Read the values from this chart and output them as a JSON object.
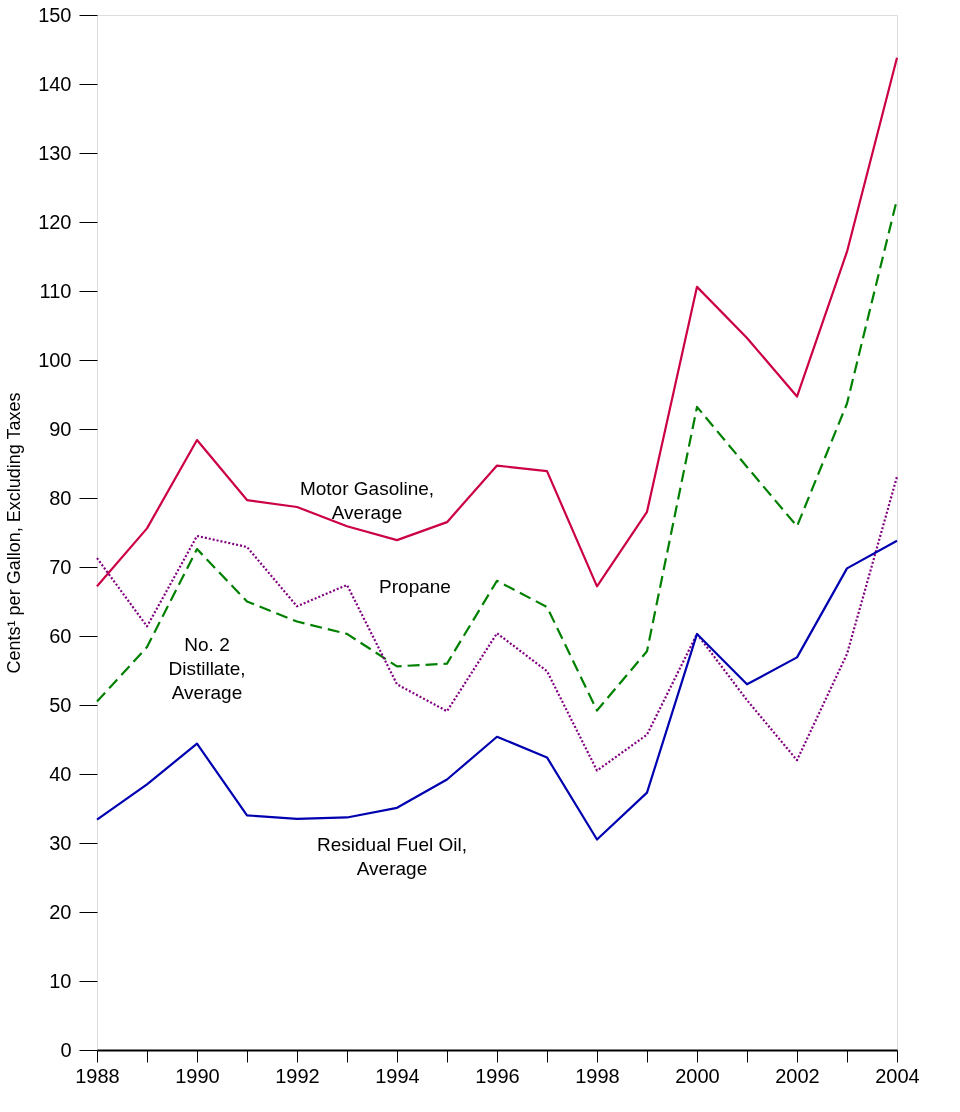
{
  "chart_data": {
    "type": "line",
    "ylabel": "Cents¹ per Gallon, Excluding Taxes",
    "x": [
      1988,
      1989,
      1990,
      1991,
      1992,
      1993,
      1994,
      1995,
      1996,
      1997,
      1998,
      1999,
      2000,
      2001,
      2002,
      2003,
      2004
    ],
    "series": [
      {
        "name": "Motor Gasoline,\nAverage",
        "color": "#cc0044",
        "line_style": "solid",
        "values": [
          67.2,
          75.6,
          88.4,
          79.7,
          78.7,
          75.9,
          73.9,
          76.5,
          84.7,
          83.9,
          67.2,
          78.0,
          110.6,
          103.2,
          94.7,
          115.7,
          143.8
        ]
      },
      {
        "name": "No. 2\nDistillate,\nAverage",
        "color": "#008000",
        "line_style": "dashed",
        "values": [
          50.5,
          58.4,
          72.6,
          65.0,
          62.1,
          60.3,
          55.6,
          56.0,
          68.0,
          64.2,
          49.2,
          57.8,
          93.2,
          84.5,
          75.9,
          93.7,
          123.3
        ]
      },
      {
        "name": "Propane",
        "color": "#800080",
        "line_style": "dotted",
        "values": [
          71.3,
          61.4,
          74.5,
          72.9,
          64.3,
          67.4,
          53.0,
          49.1,
          60.4,
          54.9,
          40.5,
          45.7,
          60.3,
          50.7,
          42.0,
          57.4,
          83.1
        ]
      },
      {
        "name": "Residual Fuel Oil,\nAverage",
        "color": "#0000b0",
        "line_style": "solid",
        "values": [
          33.4,
          38.5,
          44.4,
          34.0,
          33.5,
          33.7,
          35.1,
          39.2,
          45.4,
          42.4,
          30.5,
          37.3,
          60.3,
          53.0,
          56.9,
          69.8,
          73.8
        ]
      }
    ],
    "xlim": [
      1988,
      2004
    ],
    "xticks": [
      1988,
      {
        "value": 1989,
        "label": null
      },
      1990,
      {
        "value": 1991,
        "label": null
      },
      1992,
      {
        "value": 1993,
        "label": null
      },
      1994,
      {
        "value": 1995,
        "label": null
      },
      1996,
      {
        "value": 1997,
        "label": null
      },
      1998,
      {
        "value": 1999,
        "label": null
      },
      2000,
      {
        "value": 2001,
        "label": null
      },
      2002,
      {
        "value": 2003,
        "label": null
      },
      2004
    ],
    "ylim": [
      0,
      150
    ],
    "yticks": [
      0,
      10,
      20,
      30,
      40,
      50,
      60,
      70,
      80,
      90,
      100,
      110,
      120,
      130,
      140,
      150
    ],
    "grid": false
  }
}
